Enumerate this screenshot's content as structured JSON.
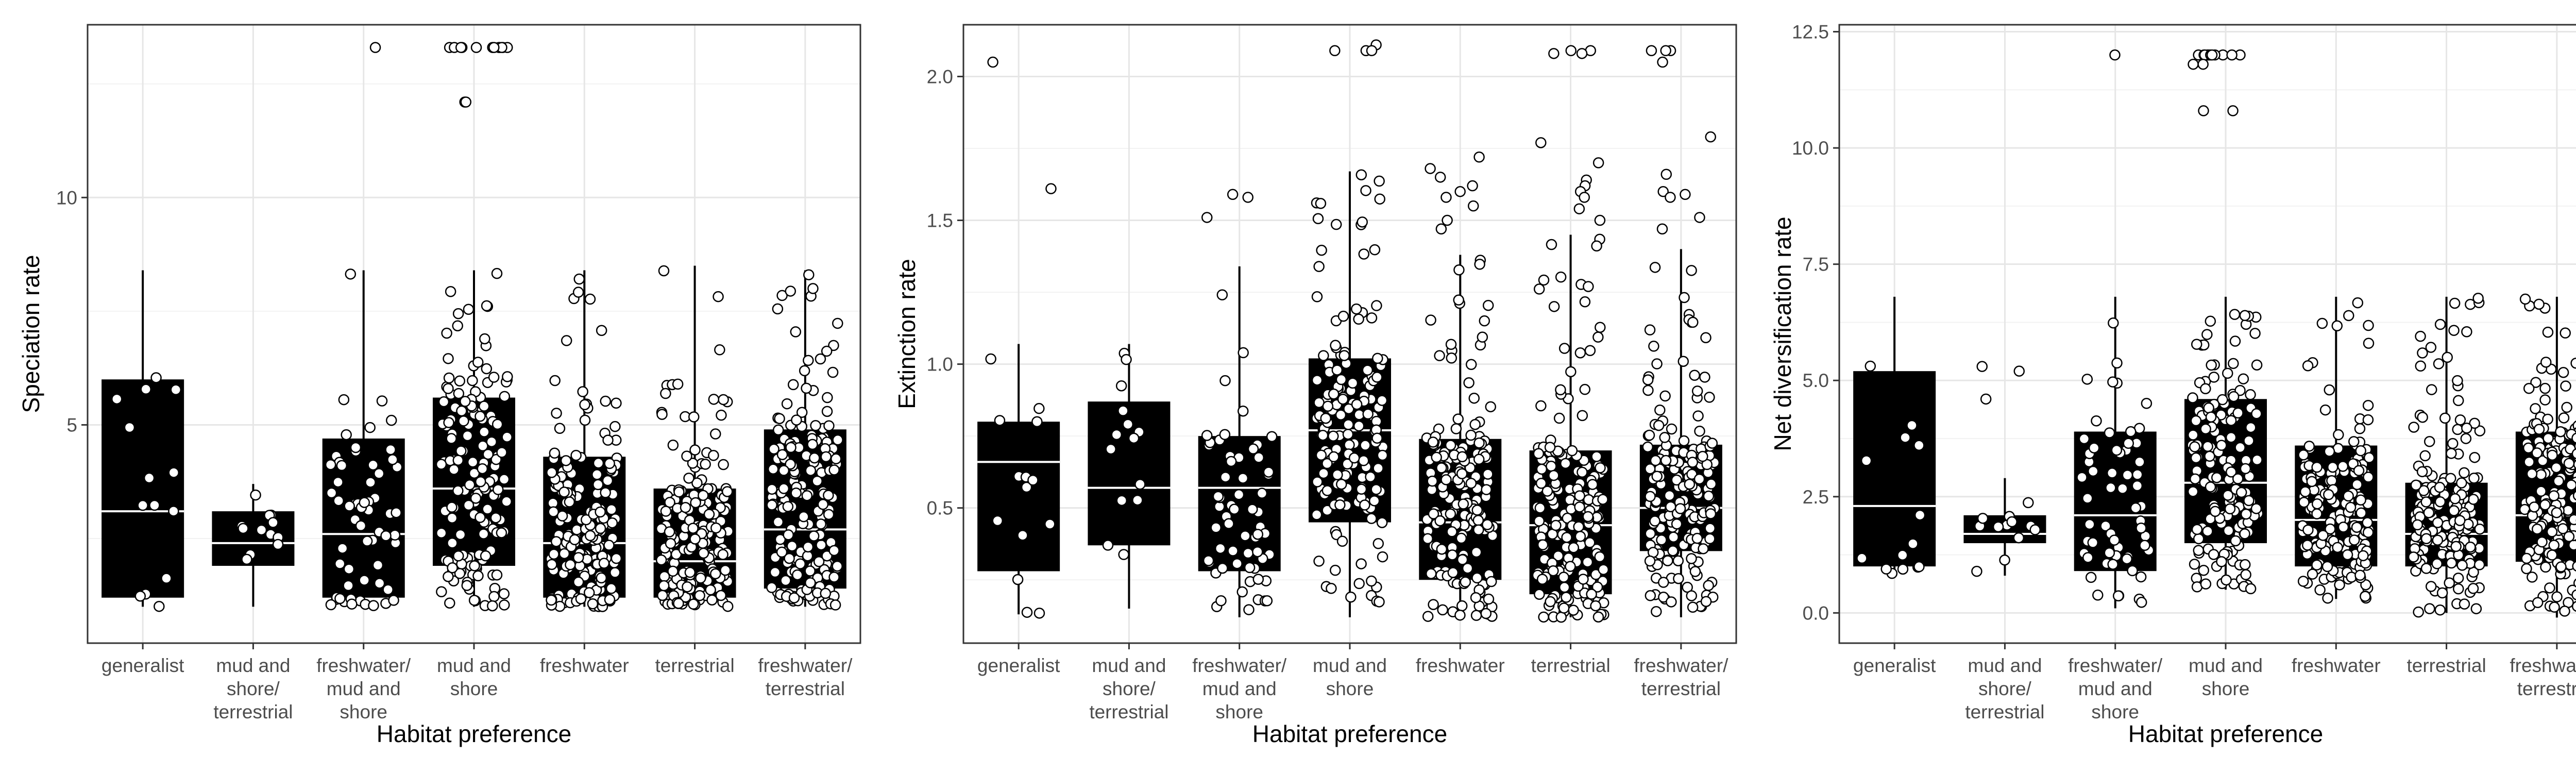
{
  "colors": {
    "background": "#ffffff",
    "panel_border": "#333333",
    "grid_major": "#e6e6e6",
    "grid_minor": "#f2f2f2",
    "box_fill": "#000000",
    "median": "#ffffff",
    "point_fill": "#ffffff",
    "point_stroke": "#000000",
    "tick_label": "#4d4d4d"
  },
  "chart_data": [
    {
      "type": "box",
      "xlabel": "Habitat preference",
      "ylabel": "Speciation rate",
      "categories": [
        "generalist",
        "mud and shore/ terrestrial",
        "freshwater/ mud and shore",
        "mud and shore",
        "freshwater",
        "terrestrial",
        "freshwater/ terrestrial"
      ],
      "category_lines": [
        [
          "generalist"
        ],
        [
          "mud and",
          "shore/",
          "terrestrial"
        ],
        [
          "freshwater/",
          "mud and",
          "shore"
        ],
        [
          "mud and",
          "shore"
        ],
        [
          "freshwater"
        ],
        [
          "terrestrial"
        ],
        [
          "freshwater/",
          "terrestrial"
        ]
      ],
      "ylim": [
        0.2,
        13.8
      ],
      "yticks": [
        5,
        10
      ],
      "ytick_labels": [
        "5",
        "10"
      ],
      "grid": true,
      "boxes": [
        {
          "q1": 1.2,
          "median": 3.1,
          "q3": 6.0,
          "whisker_low": 1.0,
          "whisker_high": 8.4
        },
        {
          "q1": 1.9,
          "median": 2.4,
          "q3": 3.1,
          "whisker_low": 1.0,
          "whisker_high": 3.7
        },
        {
          "q1": 1.2,
          "median": 2.6,
          "q3": 4.7,
          "whisker_low": 1.0,
          "whisker_high": 8.4
        },
        {
          "q1": 1.9,
          "median": 3.6,
          "q3": 5.6,
          "whisker_low": 1.0,
          "whisker_high": 8.4
        },
        {
          "q1": 1.2,
          "median": 2.4,
          "q3": 4.3,
          "whisker_low": 1.0,
          "whisker_high": 8.4
        },
        {
          "q1": 1.2,
          "median": 2.0,
          "q3": 3.6,
          "whisker_low": 1.0,
          "whisker_high": 8.5
        },
        {
          "q1": 1.4,
          "median": 2.7,
          "q3": 4.9,
          "whisker_low": 1.0,
          "whisker_high": 8.4
        }
      ],
      "jitter_counts": [
        14,
        12,
        60,
        160,
        180,
        190,
        190
      ],
      "outliers": [
        {
          "category": 2,
          "y": 13.3
        },
        {
          "category": 3,
          "y": 13.3
        },
        {
          "category": 3,
          "y": 13.3
        },
        {
          "category": 3,
          "y": 13.3
        },
        {
          "category": 3,
          "y": 13.3
        },
        {
          "category": 3,
          "y": 13.3
        },
        {
          "category": 3,
          "y": 13.3
        },
        {
          "category": 3,
          "y": 13.3
        },
        {
          "category": 3,
          "y": 13.3
        },
        {
          "category": 3,
          "y": 13.3
        },
        {
          "category": 3,
          "y": 13.3
        },
        {
          "category": 3,
          "y": 13.3
        },
        {
          "category": 3,
          "y": 13.3
        },
        {
          "category": 3,
          "y": 12.1
        },
        {
          "category": 3,
          "y": 12.1
        }
      ]
    },
    {
      "type": "box",
      "xlabel": "Habitat preference",
      "ylabel": "Extinction rate",
      "categories": [
        "generalist",
        "mud and shore/ terrestrial",
        "freshwater/ mud and shore",
        "mud and shore",
        "freshwater",
        "terrestrial",
        "freshwater/ terrestrial"
      ],
      "category_lines": [
        [
          "generalist"
        ],
        [
          "mud and",
          "shore/",
          "terrestrial"
        ],
        [
          "freshwater/",
          "mud and",
          "shore"
        ],
        [
          "mud and",
          "shore"
        ],
        [
          "freshwater"
        ],
        [
          "terrestrial"
        ],
        [
          "freshwater/",
          "terrestrial"
        ]
      ],
      "ylim": [
        0.03,
        2.18
      ],
      "yticks": [
        0.5,
        1.0,
        1.5,
        2.0
      ],
      "ytick_labels": [
        "0.5",
        "1.0",
        "1.5",
        "2.0"
      ],
      "grid": true,
      "boxes": [
        {
          "q1": 0.28,
          "median": 0.66,
          "q3": 0.8,
          "whisker_low": 0.13,
          "whisker_high": 1.07
        },
        {
          "q1": 0.37,
          "median": 0.57,
          "q3": 0.87,
          "whisker_low": 0.15,
          "whisker_high": 1.07
        },
        {
          "q1": 0.28,
          "median": 0.57,
          "q3": 0.75,
          "whisker_low": 0.12,
          "whisker_high": 1.34
        },
        {
          "q1": 0.45,
          "median": 0.77,
          "q3": 1.02,
          "whisker_low": 0.12,
          "whisker_high": 1.67
        },
        {
          "q1": 0.25,
          "median": 0.45,
          "q3": 0.74,
          "whisker_low": 0.12,
          "whisker_high": 1.38
        },
        {
          "q1": 0.2,
          "median": 0.44,
          "q3": 0.7,
          "whisker_low": 0.12,
          "whisker_high": 1.45
        },
        {
          "q1": 0.35,
          "median": 0.5,
          "q3": 0.72,
          "whisker_low": 0.12,
          "whisker_high": 1.4
        }
      ],
      "jitter_counts": [
        14,
        14,
        60,
        160,
        180,
        190,
        190
      ],
      "outliers": [
        {
          "category": 0,
          "y": 2.05
        },
        {
          "category": 0,
          "y": 1.61
        },
        {
          "category": 2,
          "y": 1.59
        },
        {
          "category": 2,
          "y": 1.58
        },
        {
          "category": 2,
          "y": 1.51
        },
        {
          "category": 3,
          "y": 2.11
        },
        {
          "category": 3,
          "y": 2.09
        },
        {
          "category": 3,
          "y": 2.09
        },
        {
          "category": 3,
          "y": 2.09
        },
        {
          "category": 4,
          "y": 1.72
        },
        {
          "category": 4,
          "y": 1.68
        },
        {
          "category": 4,
          "y": 1.65
        },
        {
          "category": 4,
          "y": 1.62
        },
        {
          "category": 4,
          "y": 1.6
        },
        {
          "category": 4,
          "y": 1.58
        },
        {
          "category": 4,
          "y": 1.55
        },
        {
          "category": 4,
          "y": 1.5
        },
        {
          "category": 4,
          "y": 1.47
        },
        {
          "category": 5,
          "y": 2.09
        },
        {
          "category": 5,
          "y": 2.09
        },
        {
          "category": 5,
          "y": 2.08
        },
        {
          "category": 5,
          "y": 2.08
        },
        {
          "category": 5,
          "y": 1.77
        },
        {
          "category": 5,
          "y": 1.7
        },
        {
          "category": 5,
          "y": 1.64
        },
        {
          "category": 5,
          "y": 1.62
        },
        {
          "category": 5,
          "y": 1.6
        },
        {
          "category": 5,
          "y": 1.58
        },
        {
          "category": 5,
          "y": 1.54
        },
        {
          "category": 5,
          "y": 1.5
        },
        {
          "category": 6,
          "y": 2.09
        },
        {
          "category": 6,
          "y": 2.09
        },
        {
          "category": 6,
          "y": 2.09
        },
        {
          "category": 6,
          "y": 2.05
        },
        {
          "category": 6,
          "y": 1.79
        },
        {
          "category": 6,
          "y": 1.66
        },
        {
          "category": 6,
          "y": 1.6
        },
        {
          "category": 6,
          "y": 1.59
        },
        {
          "category": 6,
          "y": 1.58
        },
        {
          "category": 6,
          "y": 1.51
        },
        {
          "category": 6,
          "y": 1.47
        }
      ]
    },
    {
      "type": "box",
      "xlabel": "Habitat preference",
      "ylabel": "Net diversification rate",
      "categories": [
        "generalist",
        "mud and shore/ terrestrial",
        "freshwater/ mud and shore",
        "mud and shore",
        "freshwater",
        "terrestrial",
        "freshwater/ terrestrial"
      ],
      "category_lines": [
        [
          "generalist"
        ],
        [
          "mud and",
          "shore/",
          "terrestrial"
        ],
        [
          "freshwater/",
          "mud and",
          "shore"
        ],
        [
          "mud and",
          "shore"
        ],
        [
          "freshwater"
        ],
        [
          "terrestrial"
        ],
        [
          "freshwater/",
          "terrestrial"
        ]
      ],
      "ylim": [
        -0.65,
        12.65
      ],
      "yticks": [
        0.0,
        2.5,
        5.0,
        7.5,
        10.0,
        12.5
      ],
      "ytick_labels": [
        "0.0",
        "2.5",
        "5.0",
        "7.5",
        "10.0",
        "12.5"
      ],
      "grid": true,
      "boxes": [
        {
          "q1": 1.0,
          "median": 2.3,
          "q3": 5.2,
          "whisker_low": 0.8,
          "whisker_high": 6.8
        },
        {
          "q1": 1.5,
          "median": 1.7,
          "q3": 2.1,
          "whisker_low": 0.8,
          "whisker_high": 2.9
        },
        {
          "q1": 0.9,
          "median": 2.1,
          "q3": 3.9,
          "whisker_low": 0.1,
          "whisker_high": 6.8
        },
        {
          "q1": 1.5,
          "median": 2.8,
          "q3": 4.6,
          "whisker_low": 0.5,
          "whisker_high": 6.8
        },
        {
          "q1": 1.0,
          "median": 2.0,
          "q3": 3.6,
          "whisker_low": 0.3,
          "whisker_high": 6.8
        },
        {
          "q1": 1.0,
          "median": 1.7,
          "q3": 2.8,
          "whisker_low": 0.0,
          "whisker_high": 6.8
        },
        {
          "q1": 1.1,
          "median": 2.1,
          "q3": 3.9,
          "whisker_low": -0.1,
          "whisker_high": 6.8
        }
      ],
      "jitter_counts": [
        14,
        12,
        60,
        160,
        180,
        190,
        190
      ],
      "outliers": [
        {
          "category": 1,
          "y": 5.3
        },
        {
          "category": 1,
          "y": 5.2
        },
        {
          "category": 1,
          "y": 4.6
        },
        {
          "category": 2,
          "y": 12.0
        },
        {
          "category": 3,
          "y": 12.0
        },
        {
          "category": 3,
          "y": 12.0
        },
        {
          "category": 3,
          "y": 12.0
        },
        {
          "category": 3,
          "y": 12.0
        },
        {
          "category": 3,
          "y": 12.0
        },
        {
          "category": 3,
          "y": 12.0
        },
        {
          "category": 3,
          "y": 12.0
        },
        {
          "category": 3,
          "y": 12.0
        },
        {
          "category": 3,
          "y": 12.0
        },
        {
          "category": 3,
          "y": 12.0
        },
        {
          "category": 3,
          "y": 12.0
        },
        {
          "category": 3,
          "y": 12.0
        },
        {
          "category": 3,
          "y": 11.8
        },
        {
          "category": 3,
          "y": 11.8
        },
        {
          "category": 3,
          "y": 10.8
        },
        {
          "category": 3,
          "y": 10.8
        }
      ]
    }
  ]
}
